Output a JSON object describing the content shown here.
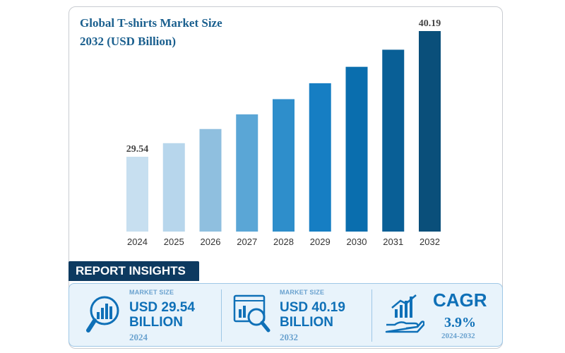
{
  "chart_data": {
    "type": "bar",
    "title": "Global T-shirts Market Size 2032 (USD Billion)",
    "title_lines": [
      "Global T-shirts Market Size",
      "2032 (USD Billion)"
    ],
    "categories": [
      "2024",
      "2025",
      "2026",
      "2027",
      "2028",
      "2029",
      "2030",
      "2031",
      "2032"
    ],
    "values": [
      29.54,
      30.69,
      31.89,
      33.13,
      34.42,
      35.77,
      37.16,
      38.61,
      40.19
    ],
    "data_labels": [
      "29.54",
      "",
      "",
      "",
      "",
      "",
      "",
      "",
      "40.19"
    ],
    "ylim": [
      23.2,
      40.19
    ],
    "xlabel": "",
    "ylabel": "",
    "grid": false,
    "colors": [
      "#c7dff0",
      "#b7d6ec",
      "#8fbfdf",
      "#5aa6d6",
      "#2e8ecb",
      "#167ec3",
      "#0a6eae",
      "#095f96",
      "#0a4f7a"
    ]
  },
  "insights": {
    "heading": "REPORT INSIGHTS",
    "market_size_start": {
      "label": "MARKET SIZE",
      "value_line1": "USD 29.54",
      "value_line2": "BILLION",
      "year": "2024"
    },
    "market_size_end": {
      "label": "MARKET SIZE",
      "value_line1": "USD 40.19",
      "value_line2": "BILLION",
      "year": "2032"
    },
    "cagr": {
      "label": "CAGR",
      "value": "3.9%",
      "period": "2024-2032"
    }
  },
  "colors": {
    "accent": "#0f70b7",
    "dark": "#0d3a60",
    "light_label": "#6aa2cf",
    "panel_bg": "#e8f3fb"
  }
}
